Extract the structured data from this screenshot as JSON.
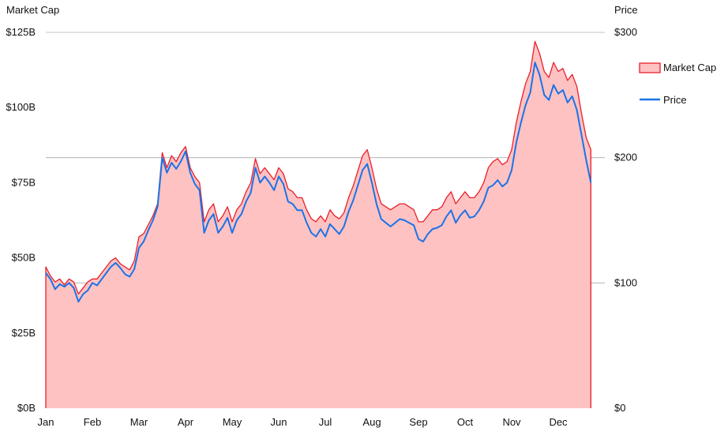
{
  "chart_data": {
    "type": "area",
    "left_axis_title": "Market Cap",
    "right_axis_title": "Price",
    "left_ticks": [
      "$0B",
      "$25B",
      "$50B",
      "$75B",
      "$100B",
      "$125B"
    ],
    "right_ticks": [
      "$0",
      "$100",
      "$200",
      "$300"
    ],
    "months": [
      "Jan",
      "Feb",
      "Mar",
      "Apr",
      "May",
      "Jun",
      "Jul",
      "Aug",
      "Sep",
      "Oct",
      "Nov",
      "Dec"
    ],
    "x_range": [
      0,
      12
    ],
    "left_ylim": [
      0,
      125
    ],
    "right_ylim": [
      0,
      300
    ],
    "legend_position": "right",
    "series": [
      {
        "name": "Market Cap",
        "axis": "left",
        "style": "area",
        "color": "#e8202a",
        "fill": "#ffc2c2",
        "points": [
          [
            0.0,
            47
          ],
          [
            0.1,
            44
          ],
          [
            0.2,
            42
          ],
          [
            0.3,
            43
          ],
          [
            0.4,
            41
          ],
          [
            0.5,
            43
          ],
          [
            0.6,
            42
          ],
          [
            0.7,
            38
          ],
          [
            0.8,
            40
          ],
          [
            0.9,
            42
          ],
          [
            1.0,
            43
          ],
          [
            1.1,
            43
          ],
          [
            1.2,
            45
          ],
          [
            1.3,
            47
          ],
          [
            1.4,
            49
          ],
          [
            1.5,
            50
          ],
          [
            1.6,
            48
          ],
          [
            1.7,
            47
          ],
          [
            1.8,
            46
          ],
          [
            1.9,
            49
          ],
          [
            2.0,
            57
          ],
          [
            2.1,
            58
          ],
          [
            2.2,
            61
          ],
          [
            2.3,
            64
          ],
          [
            2.4,
            68
          ],
          [
            2.5,
            85
          ],
          [
            2.6,
            80
          ],
          [
            2.7,
            84
          ],
          [
            2.8,
            82
          ],
          [
            2.9,
            85
          ],
          [
            3.0,
            87
          ],
          [
            3.1,
            80
          ],
          [
            3.2,
            77
          ],
          [
            3.3,
            75
          ],
          [
            3.4,
            62
          ],
          [
            3.5,
            66
          ],
          [
            3.6,
            68
          ],
          [
            3.7,
            62
          ],
          [
            3.8,
            64
          ],
          [
            3.9,
            67
          ],
          [
            4.0,
            62
          ],
          [
            4.1,
            66
          ],
          [
            4.2,
            68
          ],
          [
            4.3,
            72
          ],
          [
            4.4,
            75
          ],
          [
            4.5,
            83
          ],
          [
            4.6,
            78
          ],
          [
            4.7,
            80
          ],
          [
            4.8,
            78
          ],
          [
            4.9,
            76
          ],
          [
            5.0,
            80
          ],
          [
            5.1,
            78
          ],
          [
            5.2,
            73
          ],
          [
            5.3,
            72
          ],
          [
            5.4,
            70
          ],
          [
            5.5,
            70
          ],
          [
            5.6,
            66
          ],
          [
            5.7,
            63
          ],
          [
            5.8,
            62
          ],
          [
            5.9,
            64
          ],
          [
            6.0,
            62
          ],
          [
            6.1,
            66
          ],
          [
            6.2,
            64
          ],
          [
            6.3,
            63
          ],
          [
            6.4,
            65
          ],
          [
            6.5,
            70
          ],
          [
            6.6,
            74
          ],
          [
            6.7,
            79
          ],
          [
            6.8,
            84
          ],
          [
            6.9,
            86
          ],
          [
            7.0,
            80
          ],
          [
            7.1,
            73
          ],
          [
            7.2,
            68
          ],
          [
            7.3,
            67
          ],
          [
            7.4,
            66
          ],
          [
            7.5,
            67
          ],
          [
            7.6,
            68
          ],
          [
            7.7,
            68
          ],
          [
            7.8,
            67
          ],
          [
            7.9,
            66
          ],
          [
            8.0,
            62
          ],
          [
            8.1,
            62
          ],
          [
            8.2,
            64
          ],
          [
            8.3,
            66
          ],
          [
            8.4,
            66
          ],
          [
            8.5,
            67
          ],
          [
            8.6,
            70
          ],
          [
            8.7,
            72
          ],
          [
            8.8,
            68
          ],
          [
            8.9,
            70
          ],
          [
            9.0,
            72
          ],
          [
            9.1,
            70
          ],
          [
            9.2,
            70
          ],
          [
            9.3,
            72
          ],
          [
            9.4,
            75
          ],
          [
            9.5,
            80
          ],
          [
            9.6,
            82
          ],
          [
            9.7,
            83
          ],
          [
            9.8,
            81
          ],
          [
            9.9,
            82
          ],
          [
            10.0,
            86
          ],
          [
            10.1,
            95
          ],
          [
            10.2,
            102
          ],
          [
            10.3,
            108
          ],
          [
            10.4,
            112
          ],
          [
            10.5,
            122
          ],
          [
            10.6,
            118
          ],
          [
            10.7,
            112
          ],
          [
            10.8,
            110
          ],
          [
            10.9,
            115
          ],
          [
            11.0,
            112
          ],
          [
            11.1,
            113
          ],
          [
            11.2,
            109
          ],
          [
            11.3,
            111
          ],
          [
            11.4,
            107
          ],
          [
            11.5,
            98
          ],
          [
            11.6,
            90
          ],
          [
            11.7,
            86
          ]
        ]
      },
      {
        "name": "Price",
        "axis": "right",
        "style": "line",
        "color": "#1a73e8",
        "points": [
          [
            0.0,
            108
          ],
          [
            0.1,
            103
          ],
          [
            0.2,
            95
          ],
          [
            0.3,
            99
          ],
          [
            0.4,
            97
          ],
          [
            0.5,
            100
          ],
          [
            0.6,
            96
          ],
          [
            0.7,
            85
          ],
          [
            0.8,
            91
          ],
          [
            0.9,
            94
          ],
          [
            1.0,
            100
          ],
          [
            1.1,
            98
          ],
          [
            1.2,
            103
          ],
          [
            1.3,
            108
          ],
          [
            1.4,
            113
          ],
          [
            1.5,
            116
          ],
          [
            1.6,
            112
          ],
          [
            1.7,
            107
          ],
          [
            1.8,
            105
          ],
          [
            1.9,
            111
          ],
          [
            2.0,
            128
          ],
          [
            2.1,
            133
          ],
          [
            2.2,
            142
          ],
          [
            2.3,
            150
          ],
          [
            2.4,
            161
          ],
          [
            2.5,
            200
          ],
          [
            2.6,
            188
          ],
          [
            2.7,
            196
          ],
          [
            2.8,
            191
          ],
          [
            2.9,
            197
          ],
          [
            3.0,
            205
          ],
          [
            3.1,
            188
          ],
          [
            3.2,
            179
          ],
          [
            3.3,
            174
          ],
          [
            3.4,
            140
          ],
          [
            3.5,
            150
          ],
          [
            3.6,
            155
          ],
          [
            3.7,
            140
          ],
          [
            3.8,
            145
          ],
          [
            3.9,
            152
          ],
          [
            4.0,
            140
          ],
          [
            4.1,
            150
          ],
          [
            4.2,
            155
          ],
          [
            4.3,
            165
          ],
          [
            4.4,
            172
          ],
          [
            4.5,
            192
          ],
          [
            4.6,
            180
          ],
          [
            4.7,
            185
          ],
          [
            4.8,
            180
          ],
          [
            4.9,
            174
          ],
          [
            5.0,
            185
          ],
          [
            5.1,
            179
          ],
          [
            5.2,
            165
          ],
          [
            5.3,
            163
          ],
          [
            5.4,
            158
          ],
          [
            5.5,
            158
          ],
          [
            5.6,
            148
          ],
          [
            5.7,
            140
          ],
          [
            5.8,
            137
          ],
          [
            5.9,
            143
          ],
          [
            6.0,
            137
          ],
          [
            6.1,
            147
          ],
          [
            6.2,
            143
          ],
          [
            6.3,
            139
          ],
          [
            6.4,
            145
          ],
          [
            6.5,
            157
          ],
          [
            6.6,
            166
          ],
          [
            6.7,
            178
          ],
          [
            6.8,
            190
          ],
          [
            6.9,
            195
          ],
          [
            7.0,
            180
          ],
          [
            7.1,
            163
          ],
          [
            7.2,
            151
          ],
          [
            7.3,
            148
          ],
          [
            7.4,
            145
          ],
          [
            7.5,
            148
          ],
          [
            7.6,
            151
          ],
          [
            7.7,
            150
          ],
          [
            7.8,
            148
          ],
          [
            7.9,
            146
          ],
          [
            8.0,
            135
          ],
          [
            8.1,
            133
          ],
          [
            8.2,
            139
          ],
          [
            8.3,
            143
          ],
          [
            8.4,
            144
          ],
          [
            8.5,
            146
          ],
          [
            8.6,
            153
          ],
          [
            8.7,
            158
          ],
          [
            8.8,
            148
          ],
          [
            8.9,
            154
          ],
          [
            9.0,
            158
          ],
          [
            9.1,
            152
          ],
          [
            9.2,
            153
          ],
          [
            9.3,
            158
          ],
          [
            9.4,
            165
          ],
          [
            9.5,
            176
          ],
          [
            9.6,
            178
          ],
          [
            9.7,
            182
          ],
          [
            9.8,
            177
          ],
          [
            9.9,
            180
          ],
          [
            10.0,
            190
          ],
          [
            10.1,
            212
          ],
          [
            10.2,
            228
          ],
          [
            10.3,
            242
          ],
          [
            10.4,
            252
          ],
          [
            10.5,
            276
          ],
          [
            10.6,
            266
          ],
          [
            10.7,
            250
          ],
          [
            10.8,
            246
          ],
          [
            10.9,
            258
          ],
          [
            11.0,
            251
          ],
          [
            11.1,
            254
          ],
          [
            11.2,
            244
          ],
          [
            11.3,
            249
          ],
          [
            11.4,
            238
          ],
          [
            11.5,
            218
          ],
          [
            11.6,
            198
          ],
          [
            11.7,
            180
          ]
        ]
      }
    ]
  }
}
